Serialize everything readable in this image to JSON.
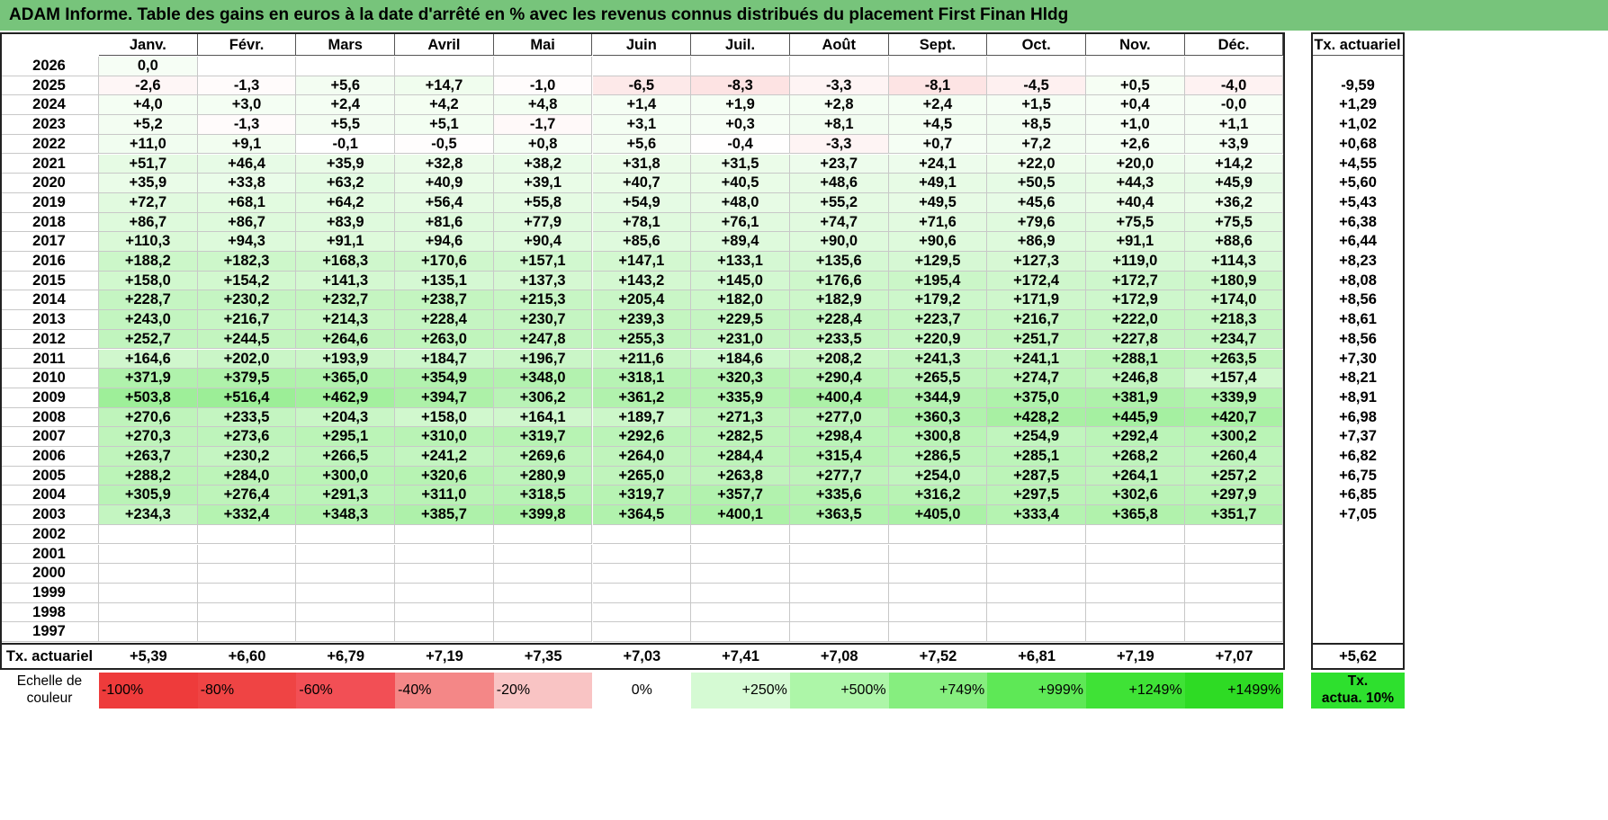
{
  "title": "ADAM Informe. Table des gains en euros à la date d'arrêté en % avec les revenus connus distribués du placement First Finan Hldg",
  "colors": {
    "title_bg": "#77c47b",
    "neg_strong": "#ef4444",
    "pos_strong": "#2ee02e"
  },
  "chart_data": {
    "type": "table",
    "months": [
      "Janv.",
      "Févr.",
      "Mars",
      "Avril",
      "Mai",
      "Juin",
      "Juil.",
      "Août",
      "Sept.",
      "Oct.",
      "Nov.",
      "Déc."
    ],
    "rate_header": "Tx. actuariel",
    "rows": [
      {
        "year": "2026",
        "values": [
          "0,0",
          "",
          "",
          "",
          "",
          "",
          "",
          "",
          "",
          "",
          "",
          ""
        ],
        "rate": ""
      },
      {
        "year": "2025",
        "values": [
          "-2,6",
          "-1,3",
          "+5,6",
          "+14,7",
          "-1,0",
          "-6,5",
          "-8,3",
          "-3,3",
          "-8,1",
          "-4,5",
          "+0,5",
          "-4,0"
        ],
        "rate": "-9,59"
      },
      {
        "year": "2024",
        "values": [
          "+4,0",
          "+3,0",
          "+2,4",
          "+4,2",
          "+4,8",
          "+1,4",
          "+1,9",
          "+2,8",
          "+2,4",
          "+1,5",
          "+0,4",
          "-0,0"
        ],
        "rate": "+1,29"
      },
      {
        "year": "2023",
        "values": [
          "+5,2",
          "-1,3",
          "+5,5",
          "+5,1",
          "-1,7",
          "+3,1",
          "+0,3",
          "+8,1",
          "+4,5",
          "+8,5",
          "+1,0",
          "+1,1"
        ],
        "rate": "+1,02"
      },
      {
        "year": "2022",
        "values": [
          "+11,0",
          "+9,1",
          "-0,1",
          "-0,5",
          "+0,8",
          "+5,6",
          "-0,4",
          "-3,3",
          "+0,7",
          "+7,2",
          "+2,6",
          "+3,9"
        ],
        "rate": "+0,68"
      },
      {
        "year": "2021",
        "values": [
          "+51,7",
          "+46,4",
          "+35,9",
          "+32,8",
          "+38,2",
          "+31,8",
          "+31,5",
          "+23,7",
          "+24,1",
          "+22,0",
          "+20,0",
          "+14,2"
        ],
        "rate": "+4,55"
      },
      {
        "year": "2020",
        "values": [
          "+35,9",
          "+33,8",
          "+63,2",
          "+40,9",
          "+39,1",
          "+40,7",
          "+40,5",
          "+48,6",
          "+49,1",
          "+50,5",
          "+44,3",
          "+45,9"
        ],
        "rate": "+5,60"
      },
      {
        "year": "2019",
        "values": [
          "+72,7",
          "+68,1",
          "+64,2",
          "+56,4",
          "+55,8",
          "+54,9",
          "+48,0",
          "+55,2",
          "+49,5",
          "+45,6",
          "+40,4",
          "+36,2"
        ],
        "rate": "+5,43"
      },
      {
        "year": "2018",
        "values": [
          "+86,7",
          "+86,7",
          "+83,9",
          "+81,6",
          "+77,9",
          "+78,1",
          "+76,1",
          "+74,7",
          "+71,6",
          "+79,6",
          "+75,5",
          "+75,5"
        ],
        "rate": "+6,38"
      },
      {
        "year": "2017",
        "values": [
          "+110,3",
          "+94,3",
          "+91,1",
          "+94,6",
          "+90,4",
          "+85,6",
          "+89,4",
          "+90,0",
          "+90,6",
          "+86,9",
          "+91,1",
          "+88,6"
        ],
        "rate": "+6,44"
      },
      {
        "year": "2016",
        "values": [
          "+188,2",
          "+182,3",
          "+168,3",
          "+170,6",
          "+157,1",
          "+147,1",
          "+133,1",
          "+135,6",
          "+129,5",
          "+127,3",
          "+119,0",
          "+114,3"
        ],
        "rate": "+8,23"
      },
      {
        "year": "2015",
        "values": [
          "+158,0",
          "+154,2",
          "+141,3",
          "+135,1",
          "+137,3",
          "+143,2",
          "+145,0",
          "+176,6",
          "+195,4",
          "+172,4",
          "+172,7",
          "+180,9"
        ],
        "rate": "+8,08"
      },
      {
        "year": "2014",
        "values": [
          "+228,7",
          "+230,2",
          "+232,7",
          "+238,7",
          "+215,3",
          "+205,4",
          "+182,0",
          "+182,9",
          "+179,2",
          "+171,9",
          "+172,9",
          "+174,0"
        ],
        "rate": "+8,56"
      },
      {
        "year": "2013",
        "values": [
          "+243,0",
          "+216,7",
          "+214,3",
          "+228,4",
          "+230,7",
          "+239,3",
          "+229,5",
          "+228,4",
          "+223,7",
          "+216,7",
          "+222,0",
          "+218,3"
        ],
        "rate": "+8,61"
      },
      {
        "year": "2012",
        "values": [
          "+252,7",
          "+244,5",
          "+264,6",
          "+263,0",
          "+247,8",
          "+255,3",
          "+231,0",
          "+233,5",
          "+220,9",
          "+251,7",
          "+227,8",
          "+234,7"
        ],
        "rate": "+8,56"
      },
      {
        "year": "2011",
        "values": [
          "+164,6",
          "+202,0",
          "+193,9",
          "+184,7",
          "+196,7",
          "+211,6",
          "+184,6",
          "+208,2",
          "+241,3",
          "+241,1",
          "+288,1",
          "+263,5"
        ],
        "rate": "+7,30"
      },
      {
        "year": "2010",
        "values": [
          "+371,9",
          "+379,5",
          "+365,0",
          "+354,9",
          "+348,0",
          "+318,1",
          "+320,3",
          "+290,4",
          "+265,5",
          "+274,7",
          "+246,8",
          "+157,4"
        ],
        "rate": "+8,21"
      },
      {
        "year": "2009",
        "values": [
          "+503,8",
          "+516,4",
          "+462,9",
          "+394,7",
          "+306,2",
          "+361,2",
          "+335,9",
          "+400,4",
          "+344,9",
          "+375,0",
          "+381,9",
          "+339,9"
        ],
        "rate": "+8,91"
      },
      {
        "year": "2008",
        "values": [
          "+270,6",
          "+233,5",
          "+204,3",
          "+158,0",
          "+164,1",
          "+189,7",
          "+271,3",
          "+277,0",
          "+360,3",
          "+428,2",
          "+445,9",
          "+420,7"
        ],
        "rate": "+6,98"
      },
      {
        "year": "2007",
        "values": [
          "+270,3",
          "+273,6",
          "+295,1",
          "+310,0",
          "+319,7",
          "+292,6",
          "+282,5",
          "+298,4",
          "+300,8",
          "+254,9",
          "+292,4",
          "+300,2"
        ],
        "rate": "+7,37"
      },
      {
        "year": "2006",
        "values": [
          "+263,7",
          "+230,2",
          "+266,5",
          "+241,2",
          "+269,6",
          "+264,0",
          "+284,4",
          "+315,4",
          "+286,5",
          "+285,1",
          "+268,2",
          "+260,4"
        ],
        "rate": "+6,82"
      },
      {
        "year": "2005",
        "values": [
          "+288,2",
          "+284,0",
          "+300,0",
          "+320,6",
          "+280,9",
          "+265,0",
          "+263,8",
          "+277,7",
          "+254,0",
          "+287,5",
          "+264,1",
          "+257,2"
        ],
        "rate": "+6,75"
      },
      {
        "year": "2004",
        "values": [
          "+305,9",
          "+276,4",
          "+291,3",
          "+311,0",
          "+318,5",
          "+319,7",
          "+357,7",
          "+335,6",
          "+316,2",
          "+297,5",
          "+302,6",
          "+297,9"
        ],
        "rate": "+6,85"
      },
      {
        "year": "2003",
        "values": [
          "+234,3",
          "+332,4",
          "+348,3",
          "+385,7",
          "+399,8",
          "+364,5",
          "+400,1",
          "+363,5",
          "+405,0",
          "+333,4",
          "+365,8",
          "+351,7"
        ],
        "rate": "+7,05"
      },
      {
        "year": "2002",
        "values": [
          "",
          "",
          "",
          "",
          "",
          "",
          "",
          "",
          "",
          "",
          "",
          ""
        ],
        "rate": ""
      },
      {
        "year": "2001",
        "values": [
          "",
          "",
          "",
          "",
          "",
          "",
          "",
          "",
          "",
          "",
          "",
          ""
        ],
        "rate": ""
      },
      {
        "year": "2000",
        "values": [
          "",
          "",
          "",
          "",
          "",
          "",
          "",
          "",
          "",
          "",
          "",
          ""
        ],
        "rate": ""
      },
      {
        "year": "1999",
        "values": [
          "",
          "",
          "",
          "",
          "",
          "",
          "",
          "",
          "",
          "",
          "",
          ""
        ],
        "rate": ""
      },
      {
        "year": "1998",
        "values": [
          "",
          "",
          "",
          "",
          "",
          "",
          "",
          "",
          "",
          "",
          "",
          ""
        ],
        "rate": ""
      },
      {
        "year": "1997",
        "values": [
          "",
          "",
          "",
          "",
          "",
          "",
          "",
          "",
          "",
          "",
          "",
          ""
        ],
        "rate": ""
      }
    ],
    "summary": {
      "label": "Tx. actuariel",
      "values": [
        "+5,39",
        "+6,60",
        "+6,79",
        "+7,19",
        "+7,35",
        "+7,03",
        "+7,41",
        "+7,08",
        "+7,52",
        "+6,81",
        "+7,19",
        "+7,07"
      ],
      "total": "+5,62"
    },
    "scale": {
      "label_line1": "Echelle de",
      "label_line2": "couleur",
      "items": [
        {
          "label": "-100%",
          "color": "#ee3b3b"
        },
        {
          "label": "-80%",
          "color": "#ef4444"
        },
        {
          "label": "-60%",
          "color": "#f24f55"
        },
        {
          "label": "-40%",
          "color": "#f48787"
        },
        {
          "label": "-20%",
          "color": "#f9c4c4"
        },
        {
          "label": "0%",
          "color": "#ffffff"
        },
        {
          "label": "+250%",
          "color": "#d5fad3"
        },
        {
          "label": "+500%",
          "color": "#adf6a8"
        },
        {
          "label": "+749%",
          "color": "#86ee7f"
        },
        {
          "label": "+999%",
          "color": "#5ee856"
        },
        {
          "label": "+1249%",
          "color": "#3fe236"
        },
        {
          "label": "+1499%",
          "color": "#2edb24"
        }
      ],
      "rate_line1": "Tx.",
      "rate_line2": "actua. 10%",
      "rate_color": "#2ee02e"
    }
  }
}
